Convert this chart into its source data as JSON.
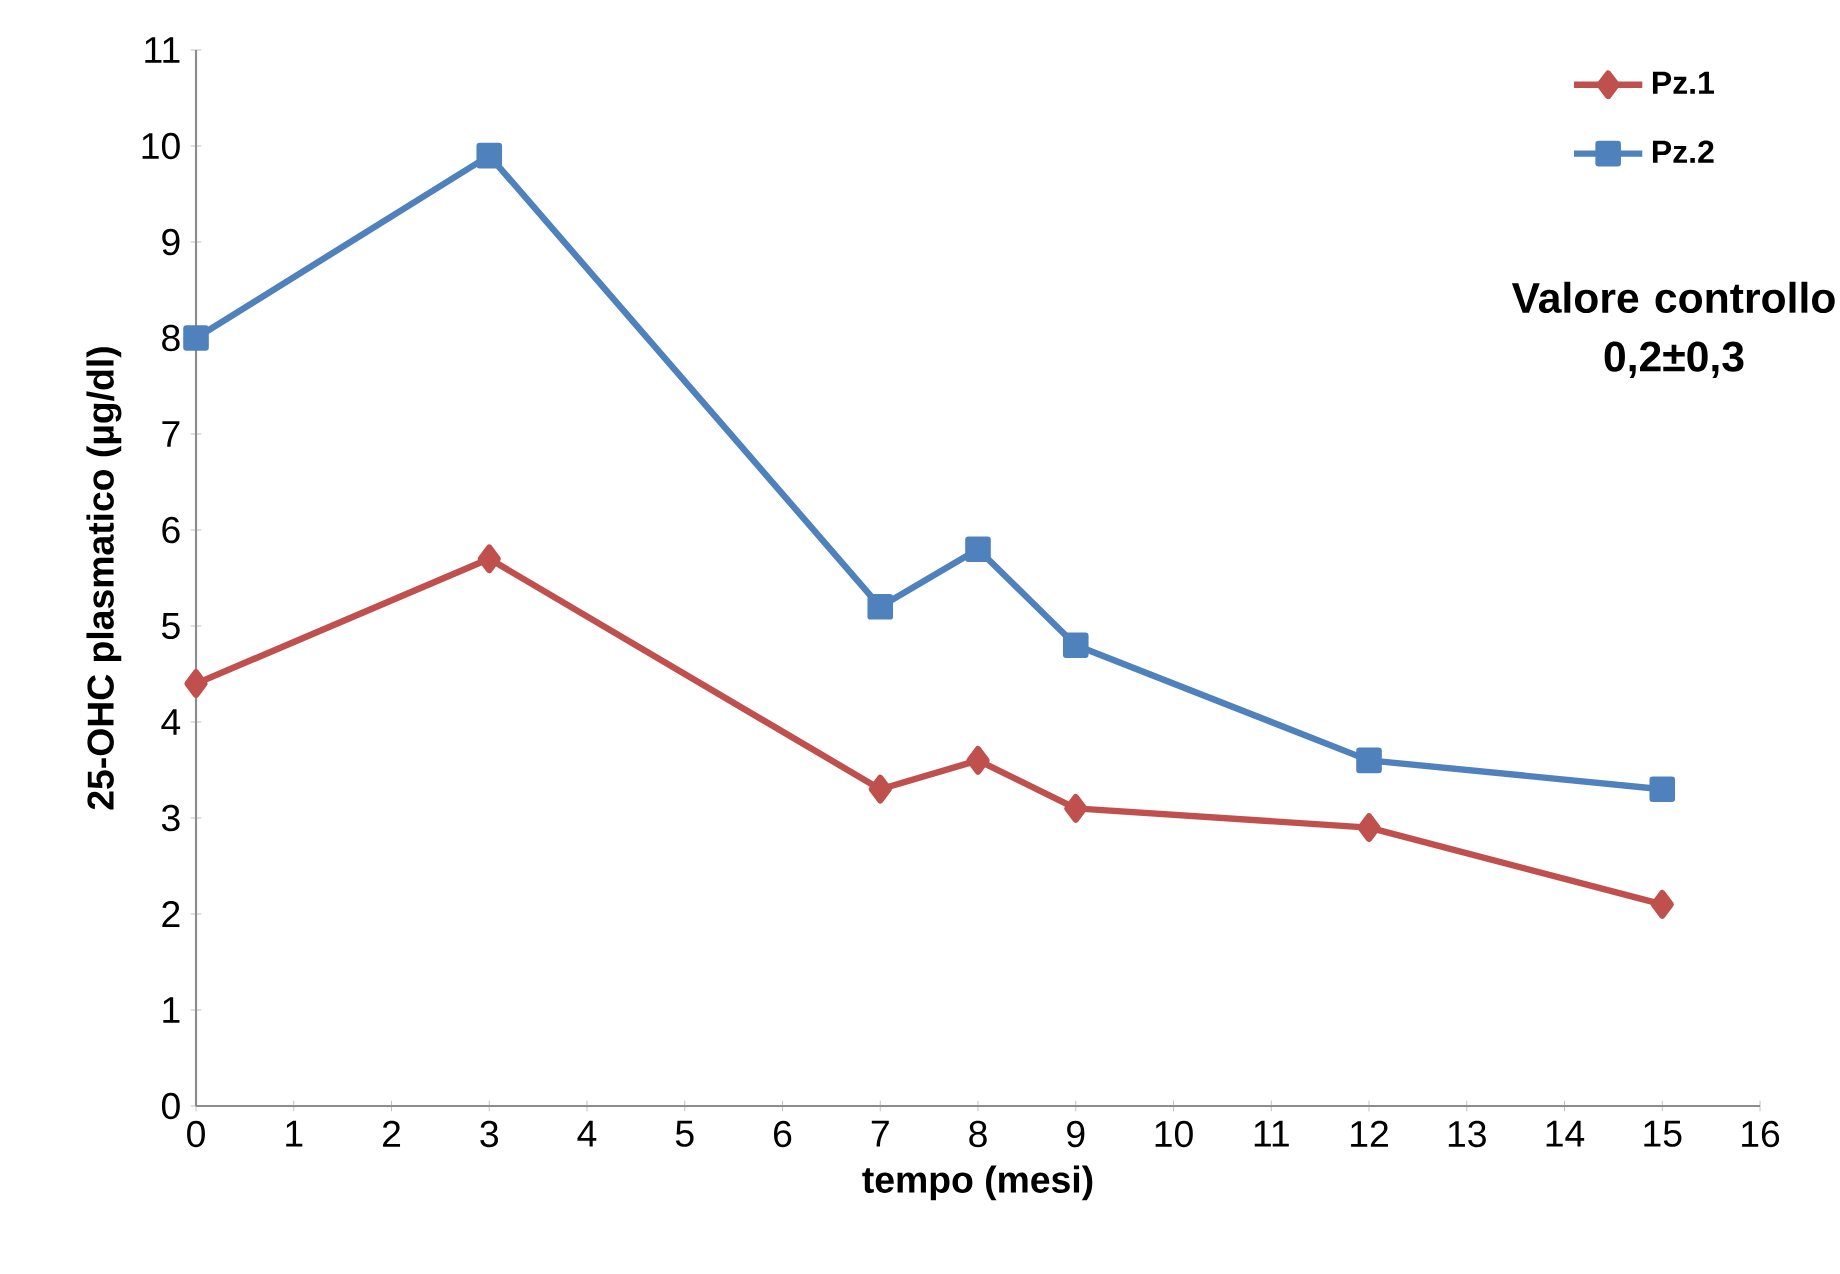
{
  "chart_data": {
    "type": "line",
    "xlabel": "tempo (mesi)",
    "ylabel": "25-OHC plasmatico (µg/dl)",
    "annotations": [
      "Valore controllo 0,2±0,3"
    ],
    "x": [
      0,
      3,
      7,
      8,
      9,
      12,
      15
    ],
    "series": [
      {
        "name": "Pz.1",
        "color": "#c0504d",
        "marker": "diamond",
        "values": [
          4.4,
          5.7,
          3.3,
          3.6,
          3.1,
          2.9,
          2.1
        ]
      },
      {
        "name": "Pz.2",
        "color": "#4f81bd",
        "marker": "square",
        "values": [
          8.0,
          9.9,
          5.2,
          5.8,
          4.8,
          3.6,
          3.3
        ]
      }
    ],
    "xlim": [
      0,
      16
    ],
    "xticks": [
      0,
      1,
      2,
      3,
      4,
      5,
      6,
      7,
      8,
      9,
      10,
      11,
      12,
      13,
      14,
      15,
      16
    ],
    "ylim": [
      0,
      11
    ],
    "yticks": [
      0,
      1,
      2,
      3,
      4,
      5,
      6,
      7,
      8,
      9,
      10,
      11
    ],
    "grid": false,
    "legend": "top right",
    "line_style": "solid"
  }
}
